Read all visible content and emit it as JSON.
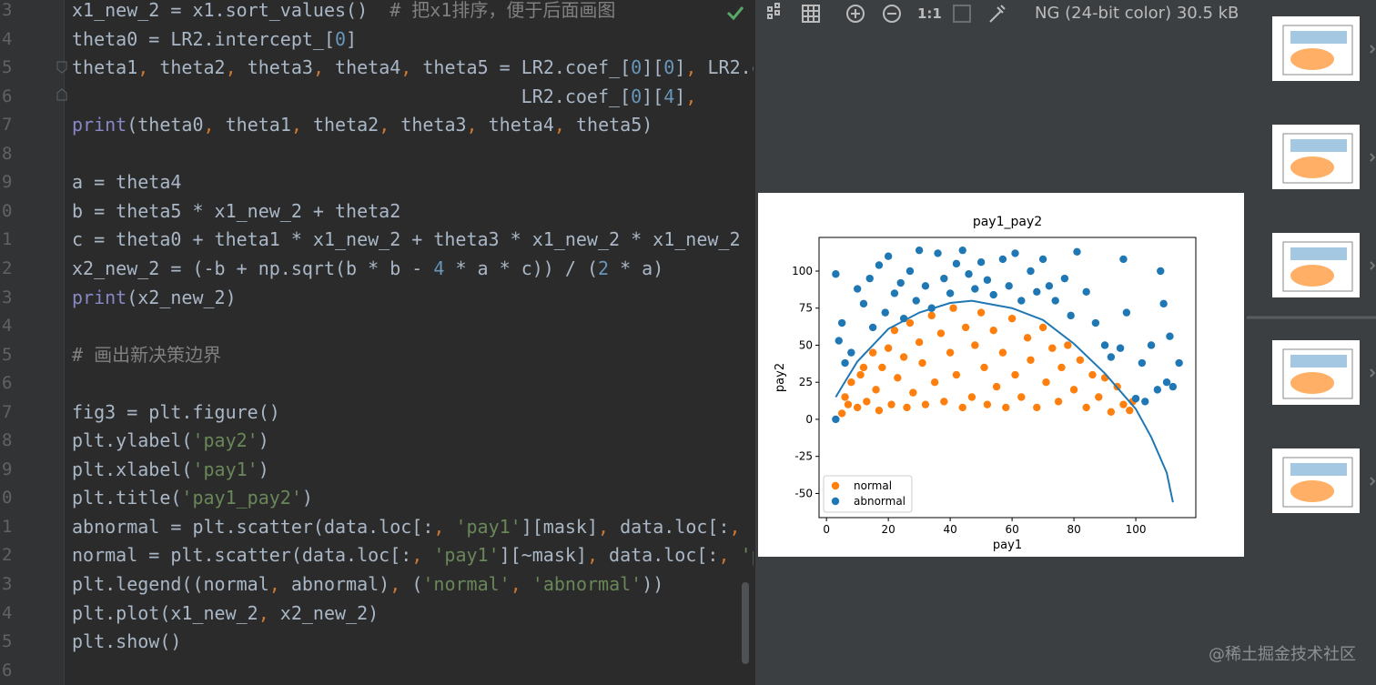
{
  "editor": {
    "lines": [
      {
        "number": "3",
        "code": [
          [
            "x1_new_2 = x1.sort_values()  ",
            "#a9b7c6"
          ],
          [
            "# 把x1排序，便于后面画图",
            "#808080"
          ]
        ]
      },
      {
        "number": "4",
        "code": [
          [
            "theta0 = LR2.intercept_[",
            "#a9b7c6"
          ],
          [
            "0",
            "#6897bb"
          ],
          [
            "]",
            "#a9b7c6"
          ]
        ]
      },
      {
        "number": "5",
        "code": [
          [
            "theta1",
            "#a9b7c6"
          ],
          [
            ", ",
            "#cc7832"
          ],
          [
            "theta2",
            "#a9b7c6"
          ],
          [
            ", ",
            "#cc7832"
          ],
          [
            "theta3",
            "#a9b7c6"
          ],
          [
            ", ",
            "#cc7832"
          ],
          [
            "theta4",
            "#a9b7c6"
          ],
          [
            ", ",
            "#cc7832"
          ],
          [
            "theta5 = LR2.coef_[",
            "#a9b7c6"
          ],
          [
            "0",
            "#6897bb"
          ],
          [
            "][",
            "#a9b7c6"
          ],
          [
            "0",
            "#6897bb"
          ],
          [
            "]",
            "#a9b7c6"
          ],
          [
            ", ",
            "#cc7832"
          ],
          [
            "LR2.c",
            "#a9b7c6"
          ]
        ]
      },
      {
        "number": "6",
        "code": [
          [
            "                                         LR2.coef_[",
            "#a9b7c6"
          ],
          [
            "0",
            "#6897bb"
          ],
          [
            "][",
            "#a9b7c6"
          ],
          [
            "4",
            "#6897bb"
          ],
          [
            "]",
            "#a9b7c6"
          ],
          [
            ",",
            "#cc7832"
          ]
        ]
      },
      {
        "number": "7",
        "code": [
          [
            "print",
            "#8888c6"
          ],
          [
            "(theta0",
            "#a9b7c6"
          ],
          [
            ", ",
            "#cc7832"
          ],
          [
            "theta1",
            "#a9b7c6"
          ],
          [
            ", ",
            "#cc7832"
          ],
          [
            "theta2",
            "#a9b7c6"
          ],
          [
            ", ",
            "#cc7832"
          ],
          [
            "theta3",
            "#a9b7c6"
          ],
          [
            ", ",
            "#cc7832"
          ],
          [
            "theta4",
            "#a9b7c6"
          ],
          [
            ", ",
            "#cc7832"
          ],
          [
            "theta5)",
            "#a9b7c6"
          ]
        ]
      },
      {
        "number": "8",
        "code": []
      },
      {
        "number": "9",
        "code": [
          [
            "a = theta4",
            "#a9b7c6"
          ]
        ]
      },
      {
        "number": "0",
        "code": [
          [
            "b = theta5 * x1_new_2 + theta2",
            "#a9b7c6"
          ]
        ]
      },
      {
        "number": "1",
        "code": [
          [
            "c = theta0 + theta1 * x1_new_2 + theta3 * x1_new_2 * x1_new_2",
            "#a9b7c6"
          ]
        ]
      },
      {
        "number": "2",
        "code": [
          [
            "x2_new_2 = (-b + np.sqrt(b * b - ",
            "#a9b7c6"
          ],
          [
            "4",
            "#6897bb"
          ],
          [
            " * a * c)) / (",
            "#a9b7c6"
          ],
          [
            "2",
            "#6897bb"
          ],
          [
            " * a)",
            "#a9b7c6"
          ]
        ]
      },
      {
        "number": "3",
        "code": [
          [
            "print",
            "#8888c6"
          ],
          [
            "(x2_new_2)",
            "#a9b7c6"
          ]
        ]
      },
      {
        "number": "4",
        "code": []
      },
      {
        "number": "5",
        "code": [
          [
            "# 画出新决策边界",
            "#808080"
          ]
        ]
      },
      {
        "number": "6",
        "code": []
      },
      {
        "number": "7",
        "code": [
          [
            "fig3 = plt.figure()",
            "#a9b7c6"
          ]
        ]
      },
      {
        "number": "8",
        "code": [
          [
            "plt.ylabel(",
            "#a9b7c6"
          ],
          [
            "'pay2'",
            "#6a8759"
          ],
          [
            ")",
            "#a9b7c6"
          ]
        ]
      },
      {
        "number": "9",
        "code": [
          [
            "plt.xlabel(",
            "#a9b7c6"
          ],
          [
            "'pay1'",
            "#6a8759"
          ],
          [
            ")",
            "#a9b7c6"
          ]
        ]
      },
      {
        "number": "0",
        "code": [
          [
            "plt.title(",
            "#a9b7c6"
          ],
          [
            "'pay1_pay2'",
            "#6a8759"
          ],
          [
            ")",
            "#a9b7c6"
          ]
        ]
      },
      {
        "number": "1",
        "code": [
          [
            "abnormal = plt.scatter(data.loc[:",
            "#a9b7c6"
          ],
          [
            ", ",
            "#cc7832"
          ],
          [
            "'pay1'",
            "#6a8759"
          ],
          [
            "][mask]",
            "#a9b7c6"
          ],
          [
            ", ",
            "#cc7832"
          ],
          [
            "data.loc[:",
            "#a9b7c6"
          ],
          [
            ", ",
            "#cc7832"
          ]
        ]
      },
      {
        "number": "2",
        "code": [
          [
            "normal = plt.scatter(data.loc[:",
            "#a9b7c6"
          ],
          [
            ", ",
            "#cc7832"
          ],
          [
            "'pay1'",
            "#6a8759"
          ],
          [
            "][~mask]",
            "#a9b7c6"
          ],
          [
            ", ",
            "#cc7832"
          ],
          [
            "data.loc[:",
            "#a9b7c6"
          ],
          [
            ", ",
            "#cc7832"
          ],
          [
            "'p",
            "#6a8759"
          ]
        ]
      },
      {
        "number": "3",
        "code": [
          [
            "plt.legend((normal",
            "#a9b7c6"
          ],
          [
            ", ",
            "#cc7832"
          ],
          [
            "abnormal)",
            "#a9b7c6"
          ],
          [
            ", ",
            "#cc7832"
          ],
          [
            "(",
            "#a9b7c6"
          ],
          [
            "'normal'",
            "#6a8759"
          ],
          [
            ", ",
            "#cc7832"
          ],
          [
            "'abnormal'",
            "#6a8759"
          ],
          [
            "))",
            "#a9b7c6"
          ]
        ]
      },
      {
        "number": "4",
        "code": [
          [
            "plt.plot(x1_new_2",
            "#a9b7c6"
          ],
          [
            ", ",
            "#cc7832"
          ],
          [
            "x2_new_2)",
            "#a9b7c6"
          ]
        ]
      },
      {
        "number": "5",
        "code": [
          [
            "plt.show()",
            "#a9b7c6"
          ]
        ]
      },
      {
        "number": "6",
        "code": []
      }
    ]
  },
  "toolbar": {
    "zoom_label": "1:1",
    "info": "NG (24-bit color) 30.5 kB"
  },
  "watermark": "@稀土掘金技术社区",
  "chart_data": {
    "type": "scatter",
    "title": "pay1_pay2",
    "x_label": "pay1",
    "y_label": "pay2",
    "xlim": [
      -2.4,
      119.4
    ],
    "ylim": [
      -66.3,
      122.7
    ],
    "xticks": [
      0,
      20,
      40,
      60,
      80,
      100
    ],
    "yticks": [
      -50,
      -25,
      0,
      25,
      50,
      75,
      100
    ],
    "legend": "lower left",
    "series": [
      {
        "name": "normal",
        "color": "#ff7f0e",
        "x": [
          5,
          6,
          7,
          8,
          10,
          11,
          12,
          13,
          15,
          16,
          17,
          18,
          20,
          21,
          22,
          23,
          25,
          26,
          27,
          28,
          30,
          31,
          32,
          34,
          35,
          37,
          38,
          40,
          41,
          42,
          44,
          45,
          47,
          48,
          50,
          51,
          52,
          54,
          55,
          57,
          58,
          60,
          61,
          63,
          65,
          66,
          68,
          70,
          71,
          73,
          75,
          76,
          78,
          80,
          82,
          84,
          86,
          88,
          90,
          92,
          94,
          96,
          98,
          99
        ],
        "values": [
          4,
          15,
          10,
          25,
          8,
          30,
          35,
          12,
          45,
          20,
          6,
          35,
          48,
          10,
          60,
          28,
          42,
          8,
          65,
          18,
          52,
          38,
          10,
          70,
          25,
          58,
          12,
          45,
          75,
          30,
          8,
          62,
          15,
          50,
          72,
          35,
          10,
          60,
          22,
          45,
          8,
          68,
          30,
          15,
          55,
          40,
          8,
          62,
          25,
          48,
          12,
          35,
          50,
          20,
          40,
          8,
          30,
          15,
          28,
          5,
          22,
          10,
          6,
          12
        ]
      },
      {
        "name": "abnormal",
        "color": "#1f77b4",
        "x": [
          3,
          3,
          4,
          5,
          6,
          8,
          10,
          12,
          14,
          15,
          17,
          19,
          20,
          22,
          24,
          25,
          27,
          29,
          30,
          32,
          34,
          36,
          38,
          40,
          42,
          44,
          46,
          48,
          50,
          52,
          54,
          57,
          59,
          61,
          63,
          66,
          68,
          70,
          72,
          74,
          77,
          79,
          81,
          84,
          87,
          90,
          92,
          95,
          96,
          97,
          100,
          102,
          103,
          105,
          107,
          108,
          109,
          110,
          111,
          112,
          114
        ],
        "values": [
          98,
          0,
          53,
          65,
          38,
          45,
          88,
          78,
          95,
          62,
          104,
          72,
          110,
          85,
          92,
          68,
          100,
          80,
          114,
          90,
          75,
          112,
          95,
          85,
          105,
          114,
          98,
          88,
          106,
          94,
          84,
          108,
          90,
          112,
          80,
          100,
          86,
          108,
          90,
          80,
          95,
          70,
          113,
          86,
          65,
          50,
          42,
          48,
          108,
          72,
          14,
          38,
          12,
          50,
          20,
          100,
          78,
          25,
          56,
          22,
          38
        ]
      },
      {
        "type": "line",
        "color": "#1f77b4",
        "x": [
          3,
          5,
          10,
          20,
          30,
          40,
          47,
          60,
          70,
          80,
          90,
          100,
          105,
          110,
          112
        ],
        "values": [
          15,
          22,
          39,
          61,
          72,
          78.5,
          80,
          75,
          67,
          51,
          31,
          7,
          -12,
          -36,
          -56
        ]
      }
    ]
  }
}
